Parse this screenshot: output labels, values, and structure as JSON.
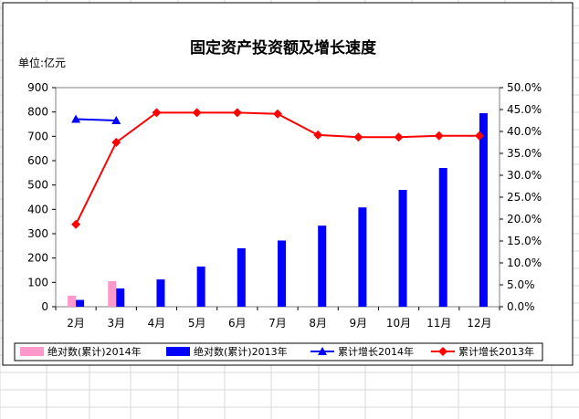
{
  "chart_data": {
    "type": "bar",
    "title": "固定资产投资额及增长速度",
    "unit_label": "单位:亿元",
    "categories": [
      "2月",
      "3月",
      "4月",
      "5月",
      "6月",
      "7月",
      "8月",
      "9月",
      "10月",
      "11月",
      "12月"
    ],
    "left_axis": {
      "min": 0,
      "max": 900,
      "step": 100,
      "ticks": [
        "0",
        "100",
        "200",
        "300",
        "400",
        "500",
        "600",
        "700",
        "800",
        "900"
      ]
    },
    "right_axis": {
      "min": 0,
      "max": 50,
      "step": 5,
      "ticks": [
        "0.0%",
        "5.0%",
        "10.0%",
        "15.0%",
        "20.0%",
        "25.0%",
        "30.0%",
        "35.0%",
        "40.0%",
        "45.0%",
        "50.0%"
      ]
    },
    "series": [
      {
        "name": "绝对数(累计)2014年",
        "kind": "bar",
        "axis": "left",
        "color": "#ff99cc",
        "values": [
          45,
          105,
          null,
          null,
          null,
          null,
          null,
          null,
          null,
          null,
          null
        ]
      },
      {
        "name": "绝对数(累计)2013年",
        "kind": "bar",
        "axis": "left",
        "color": "#0000ff",
        "values": [
          28,
          75,
          112,
          165,
          240,
          272,
          333,
          408,
          480,
          570,
          795
        ]
      },
      {
        "name": "累计增长2014年",
        "kind": "line",
        "axis": "right",
        "color": "#0000ff",
        "marker": "triangle",
        "values": [
          42.8,
          42.5,
          null,
          null,
          null,
          null,
          null,
          null,
          null,
          null,
          null
        ]
      },
      {
        "name": "累计增长2013年",
        "kind": "line",
        "axis": "right",
        "color": "#ff0000",
        "marker": "diamond",
        "values": [
          18.8,
          37.5,
          44.3,
          44.3,
          44.3,
          44.0,
          39.2,
          38.7,
          38.7,
          39.0,
          39.0
        ]
      }
    ],
    "legend_position": "bottom",
    "grid": false
  }
}
